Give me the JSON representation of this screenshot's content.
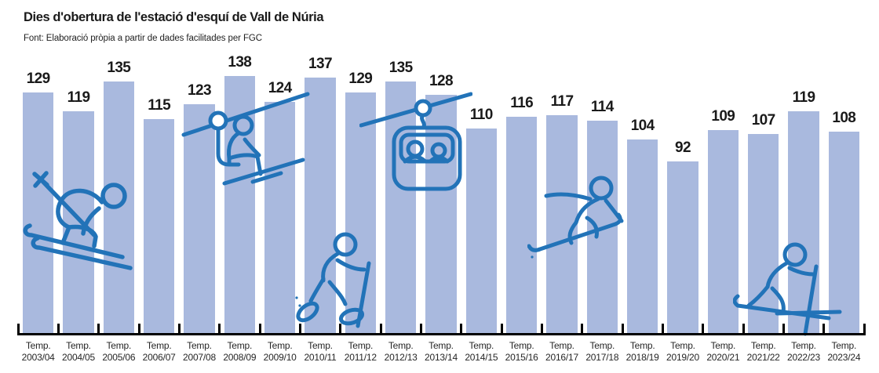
{
  "header": {
    "title": "Dies d'obertura de l'estació d'esquí de Vall de Núria",
    "source": "Font: Elaboració pròpia a partir de dades facilitades per FGC"
  },
  "chart_data": {
    "type": "bar",
    "title": "Dies d'obertura de l'estació d'esquí de Vall de Núria",
    "source": "Font: Elaboració pròpia a partir de dades facilitades per FGC",
    "x_tick_prefix": "Temp.",
    "categories": [
      "2003/04",
      "2004/05",
      "2005/06",
      "2006/07",
      "2007/08",
      "2008/09",
      "2009/10",
      "2010/11",
      "2011/12",
      "2012/13",
      "2013/14",
      "2014/15",
      "2015/16",
      "2016/17",
      "2017/18",
      "2018/19",
      "2019/20",
      "2020/21",
      "2021/22",
      "2022/23",
      "2023/24"
    ],
    "values": [
      129,
      119,
      135,
      115,
      123,
      138,
      124,
      137,
      129,
      135,
      128,
      110,
      116,
      117,
      114,
      104,
      92,
      109,
      107,
      119,
      108
    ],
    "ylabel": "",
    "xlabel": "",
    "ylim": [
      0,
      145
    ],
    "grid": false,
    "legend": false,
    "value_labels": true,
    "bar_color": "#a9b9de",
    "icon_color": "#2273b8",
    "axis_color": "#000000",
    "value_label_color": "#1a1a1a",
    "icons": [
      {
        "name": "downhill-skier-icon"
      },
      {
        "name": "chairlift-icon"
      },
      {
        "name": "snowshoer-icon"
      },
      {
        "name": "gondola-icon"
      },
      {
        "name": "snowboarder-icon"
      },
      {
        "name": "cross-country-skier-icon"
      }
    ]
  }
}
